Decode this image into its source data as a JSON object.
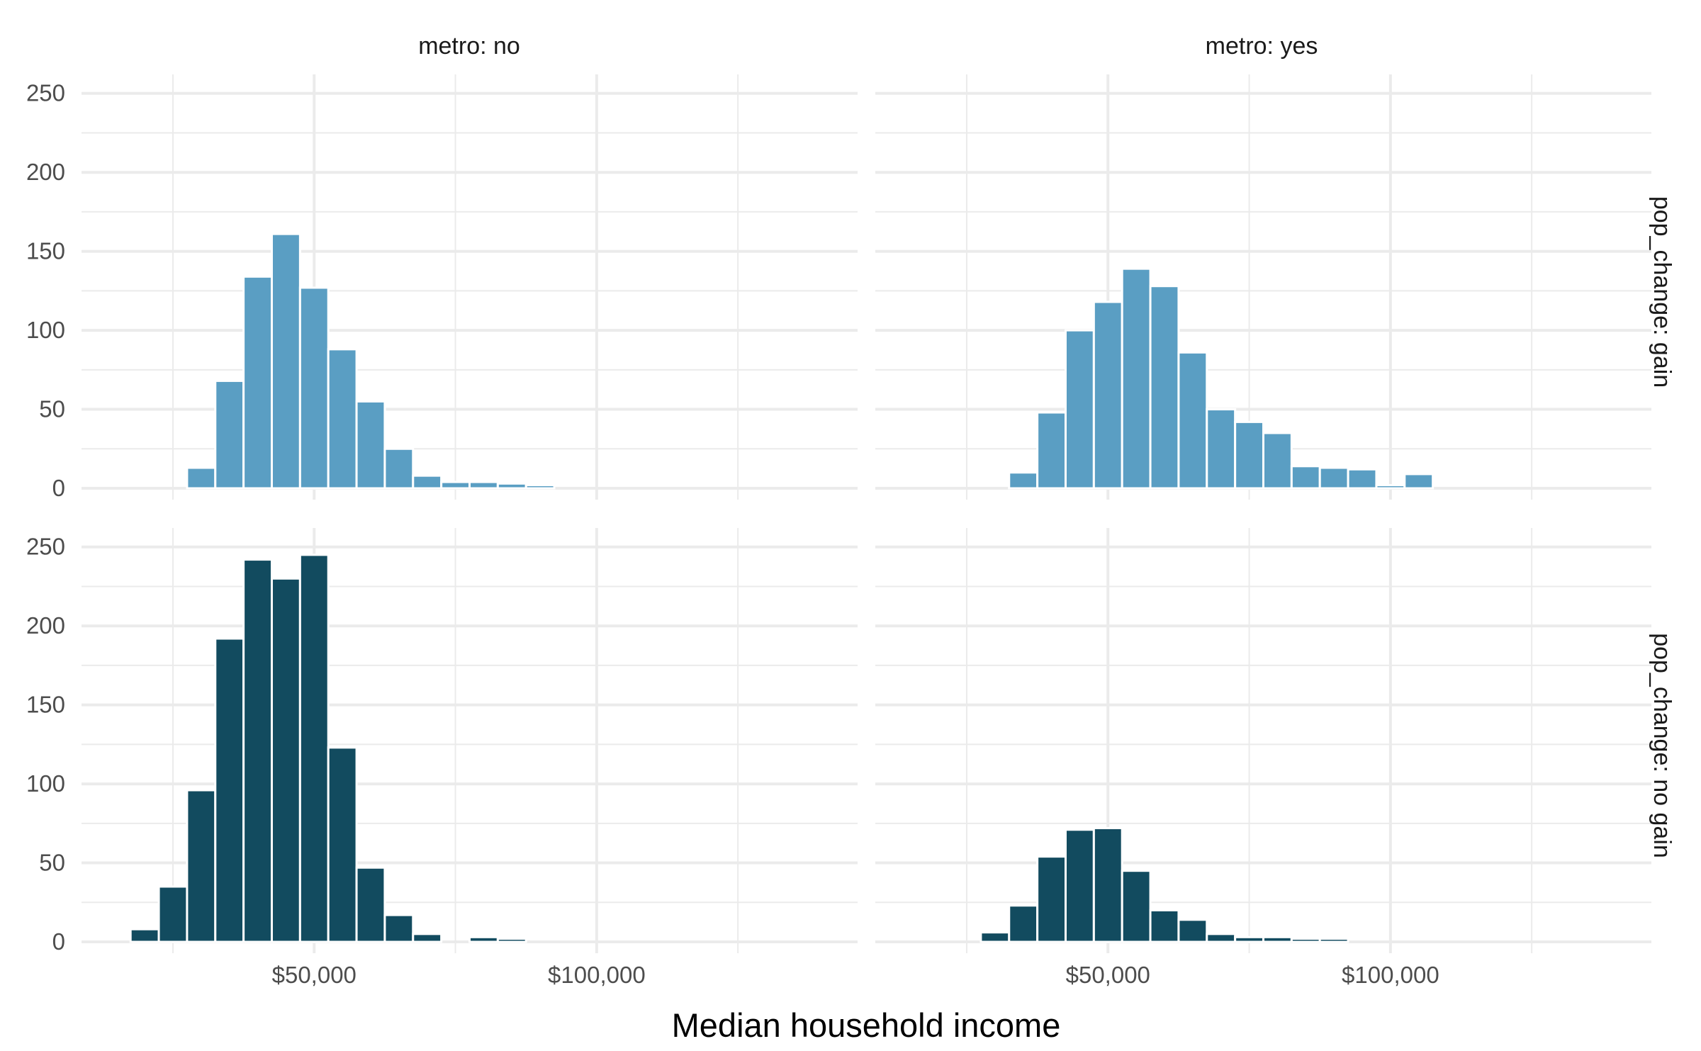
{
  "chart_data": {
    "type": "bar",
    "subtype": "faceted histogram",
    "xlabel": "Median household income",
    "ylabel": "",
    "xlim": [
      15000,
      140000
    ],
    "ylim": [
      0,
      262
    ],
    "x_ticks": [
      50000,
      100000
    ],
    "x_tick_labels": [
      "$50,000",
      "$100,000"
    ],
    "y_ticks": [
      0,
      50,
      100,
      150,
      200,
      250
    ],
    "y_tick_labels": [
      "0",
      "50",
      "100",
      "150",
      "200",
      "250"
    ],
    "grid": true,
    "legend": "none",
    "bin_width": 5000,
    "bin_centers": [
      20000,
      25000,
      30000,
      35000,
      40000,
      45000,
      50000,
      55000,
      60000,
      65000,
      70000,
      75000,
      80000,
      85000,
      90000,
      95000,
      100000,
      105000,
      110000,
      115000,
      120000,
      125000,
      130000,
      135000
    ],
    "column_facets": [
      "metro: no",
      "metro: yes"
    ],
    "row_facets": [
      "pop_change: gain",
      "pop_change: no gain"
    ],
    "colors": {
      "gain": "#5a9ec3",
      "no_gain": "#124b5f"
    },
    "panels": [
      {
        "row": 0,
        "col": 0,
        "color": "gain",
        "values": [
          0,
          0,
          13,
          68,
          134,
          161,
          127,
          88,
          55,
          25,
          8,
          4,
          4,
          3,
          2,
          0,
          0,
          0,
          0,
          0,
          0,
          0,
          0,
          0
        ]
      },
      {
        "row": 0,
        "col": 1,
        "color": "gain",
        "values": [
          0,
          0,
          0,
          0,
          0,
          0,
          0,
          0,
          0,
          0,
          0,
          0,
          0,
          0,
          0,
          0,
          0,
          0,
          0,
          0,
          0,
          0,
          0,
          0
        ],
        "values_actual": [
          0,
          0,
          0,
          10,
          48,
          100,
          118,
          139,
          128,
          86,
          50,
          42,
          35,
          14,
          13,
          12,
          2,
          9,
          0,
          0,
          0,
          0,
          0,
          0
        ]
      },
      {
        "row": 1,
        "col": 0,
        "color": "no_gain",
        "values": [
          8,
          35,
          96,
          192,
          242,
          230,
          245,
          123,
          47,
          17,
          5,
          0,
          3,
          2,
          0,
          0,
          0,
          0,
          0,
          0,
          0,
          0,
          0,
          0
        ]
      },
      {
        "row": 1,
        "col": 1,
        "color": "no_gain",
        "values": [
          0,
          0,
          6,
          23,
          54,
          71,
          72,
          45,
          20,
          14,
          5,
          3,
          3,
          2,
          2,
          0,
          0,
          0,
          0,
          0,
          0,
          0,
          0,
          0
        ]
      }
    ]
  }
}
